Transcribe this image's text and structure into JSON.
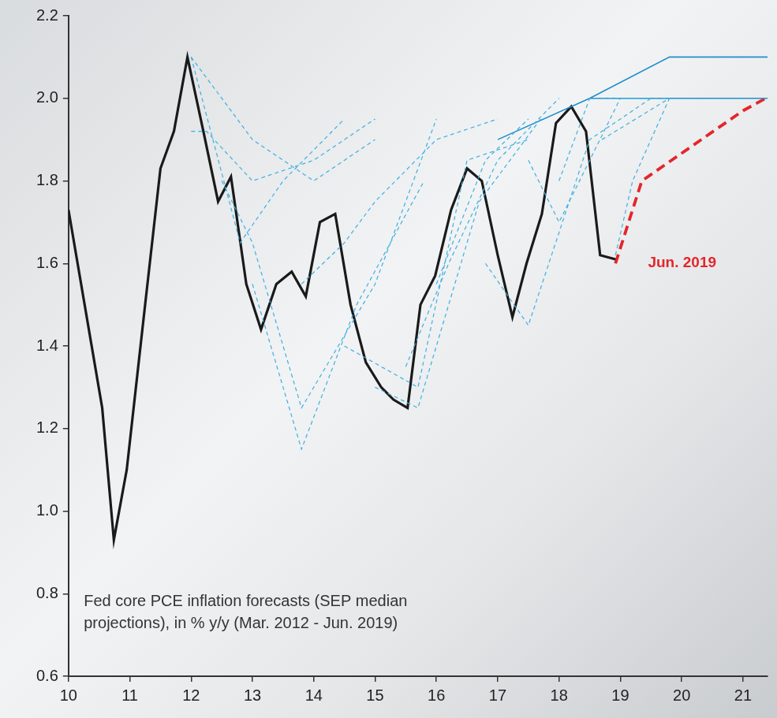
{
  "chart_data": {
    "type": "line",
    "xlim": [
      10,
      21.4
    ],
    "xticks": [
      10,
      11,
      12,
      13,
      14,
      15,
      16,
      17,
      18,
      19,
      20,
      21
    ],
    "ylim": [
      0.6,
      2.2
    ],
    "yticks": [
      0.6,
      0.8,
      {
        "value": 1,
        "label": "1.0"
      },
      1.2,
      1.4,
      1.6,
      1.8,
      {
        "value": 2,
        "label": "2.0"
      },
      2.2
    ],
    "grid": false,
    "series": [
      {
        "color": "#3cb0e2",
        "line_style": "dashed",
        "x": [
          12.0,
          12.25,
          13.0,
          14.0,
          15.0
        ],
        "values": [
          1.92,
          1.92,
          1.8,
          1.85,
          1.95
        ]
      },
      {
        "color": "#3cb0e2",
        "line_style": "dashed",
        "x": [
          12.0,
          13.0,
          14.0,
          15.0
        ],
        "values": [
          2.1,
          1.9,
          1.8,
          1.9
        ]
      },
      {
        "color": "#3cb0e2",
        "line_style": "dashed",
        "x": [
          12.0,
          12.8,
          13.5,
          14.5
        ],
        "values": [
          2.1,
          1.65,
          1.8,
          1.95
        ]
      },
      {
        "color": "#3cb0e2",
        "line_style": "dashed",
        "x": [
          12.5,
          13.0,
          13.8,
          15.0,
          16.0
        ],
        "values": [
          1.8,
          1.65,
          1.25,
          1.55,
          1.95
        ]
      },
      {
        "color": "#3cb0e2",
        "line_style": "dashed",
        "x": [
          13.0,
          13.8,
          14.7,
          15.8
        ],
        "values": [
          1.55,
          1.15,
          1.5,
          1.8
        ]
      },
      {
        "color": "#3cb0e2",
        "line_style": "dashed",
        "x": [
          13.8,
          14.5,
          15.0,
          16.0,
          17.0
        ],
        "values": [
          1.55,
          1.65,
          1.75,
          1.9,
          1.95
        ]
      },
      {
        "color": "#3cb0e2",
        "line_style": "dashed",
        "x": [
          14.5,
          15.7,
          16.5,
          17.5
        ],
        "values": [
          1.4,
          1.3,
          1.85,
          1.9
        ]
      },
      {
        "color": "#3cb0e2",
        "line_style": "dashed",
        "x": [
          15.0,
          15.7,
          16.7,
          17.7
        ],
        "values": [
          1.3,
          1.25,
          1.75,
          1.95
        ]
      },
      {
        "color": "#3cb0e2",
        "line_style": "dashed",
        "x": [
          15.5,
          16.2,
          17.0,
          18.0
        ],
        "values": [
          1.35,
          1.6,
          1.85,
          2.0
        ]
      },
      {
        "color": "#3cb0e2",
        "line_style": "dashed",
        "x": [
          16.0,
          16.8,
          17.5
        ],
        "values": [
          1.55,
          1.85,
          1.95
        ]
      },
      {
        "color": "#3cb0e2",
        "line_style": "dashed",
        "x": [
          16.8,
          17.5,
          18.5,
          19.5
        ],
        "values": [
          1.6,
          1.45,
          1.9,
          2.0
        ]
      },
      {
        "color": "#3cb0e2",
        "line_style": "dashed",
        "x": [
          17.5,
          18.0,
          19.0,
          19.8
        ],
        "values": [
          1.85,
          1.7,
          2.0,
          2.0
        ]
      },
      {
        "color": "#3cb0e2",
        "line_style": "dashed",
        "x": [
          18.0,
          18.5,
          19.5
        ],
        "values": [
          1.8,
          2.0,
          2.0
        ]
      },
      {
        "color": "#3cb0e2",
        "line_style": "dashed",
        "x": [
          18.7,
          19.8
        ],
        "values": [
          1.9,
          2.0
        ]
      },
      {
        "color": "#3cb0e2",
        "line_style": "dashed",
        "x": [
          18.92,
          19.2,
          19.8
        ],
        "values": [
          1.62,
          1.8,
          2.0
        ]
      },
      {
        "color": "#1f8fcb",
        "line_style": "solid",
        "x": [
          17.0,
          18.5,
          19.8,
          21.4
        ],
        "values": [
          1.9,
          2.0,
          2.1,
          2.1
        ]
      },
      {
        "color": "#1f8fcb",
        "line_style": "solid",
        "x": [
          18.5,
          21.4
        ],
        "values": [
          2.0,
          2.0
        ]
      },
      {
        "color": "#1a1a1a",
        "line_style": "bold",
        "x": [
          10.0,
          10.55,
          10.74,
          10.95,
          11.25,
          11.5,
          11.72,
          11.94,
          12.2,
          12.44,
          12.65,
          12.9,
          13.14,
          13.39,
          13.64,
          13.87,
          14.1,
          14.35,
          14.6,
          14.85,
          15.1,
          15.3,
          15.53,
          15.74,
          15.98,
          16.24,
          16.5,
          16.74,
          17.0,
          17.24,
          17.47,
          17.72,
          17.95,
          18.2,
          18.44,
          18.67,
          18.92
        ],
        "values": [
          1.73,
          1.25,
          0.93,
          1.1,
          1.5,
          1.83,
          1.92,
          2.1,
          1.92,
          1.75,
          1.81,
          1.55,
          1.44,
          1.55,
          1.58,
          1.52,
          1.7,
          1.72,
          1.5,
          1.36,
          1.3,
          1.27,
          1.25,
          1.5,
          1.57,
          1.73,
          1.83,
          1.8,
          1.62,
          1.47,
          1.6,
          1.72,
          1.94,
          1.98,
          1.92,
          1.62,
          1.61
        ]
      },
      {
        "color": "#e3262b",
        "line_style": "bold_dashed",
        "x": [
          18.92,
          19.35,
          21.0,
          21.37
        ],
        "values": [
          1.6,
          1.8,
          1.97,
          2.0
        ]
      }
    ],
    "annotations": [
      {
        "text": "Jun. 2019",
        "x": 19.45,
        "y": 1.6,
        "color": "#e3262b"
      },
      {
        "text": "Fed core PCE inflation forecasts (SEP median projections), in % y/y (Mar. 2012 - Jun. 2019)",
        "x": 10.25,
        "y": 0.8,
        "color": "#333333"
      }
    ]
  }
}
